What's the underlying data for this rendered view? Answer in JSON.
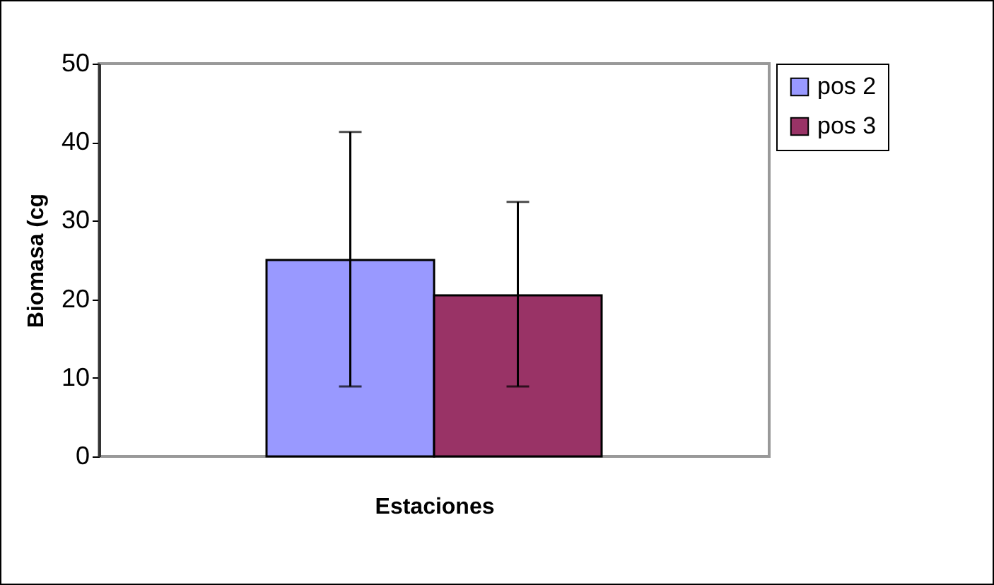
{
  "chart_data": {
    "type": "bar",
    "xlabel": "Estaciones",
    "ylabel": "Biomasa (cg",
    "categories": [
      null
    ],
    "series": [
      {
        "name": "pos 2",
        "color": "#9999ff",
        "values": [
          25
        ],
        "errors": [
          [
            8.9,
            41.3
          ]
        ]
      },
      {
        "name": "pos 3",
        "color": "#993366",
        "values": [
          20.5
        ],
        "errors": [
          [
            8.9,
            32.4
          ]
        ]
      }
    ],
    "ylim": [
      0,
      50
    ],
    "yticks": [
      0,
      10,
      20,
      30,
      40,
      50
    ],
    "grid": false,
    "legend": "right"
  }
}
